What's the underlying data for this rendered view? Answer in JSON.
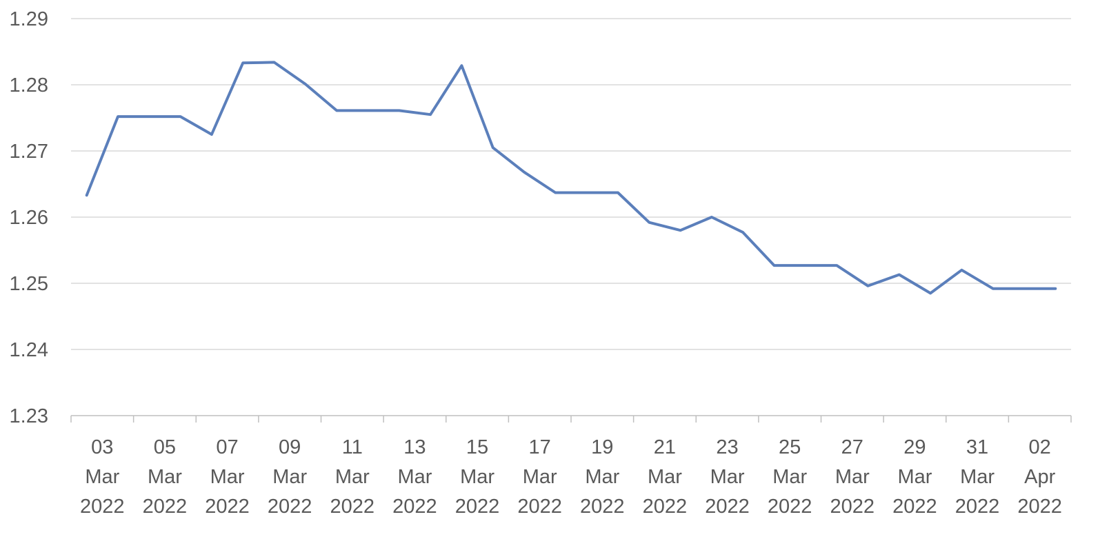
{
  "chart_data": {
    "type": "line",
    "title": "",
    "xlabel": "",
    "ylabel": "",
    "ylim": [
      1.23,
      1.29
    ],
    "y_ticks": [
      "1.23",
      "1.24",
      "1.25",
      "1.26",
      "1.27",
      "1.28",
      "1.29"
    ],
    "grid": "horizontal",
    "legend": "none",
    "x_tick_labels": [
      [
        "03",
        "Mar",
        "2022"
      ],
      [
        "05",
        "Mar",
        "2022"
      ],
      [
        "07",
        "Mar",
        "2022"
      ],
      [
        "09",
        "Mar",
        "2022"
      ],
      [
        "11",
        "Mar",
        "2022"
      ],
      [
        "13",
        "Mar",
        "2022"
      ],
      [
        "15",
        "Mar",
        "2022"
      ],
      [
        "17",
        "Mar",
        "2022"
      ],
      [
        "19",
        "Mar",
        "2022"
      ],
      [
        "21",
        "Mar",
        "2022"
      ],
      [
        "23",
        "Mar",
        "2022"
      ],
      [
        "25",
        "Mar",
        "2022"
      ],
      [
        "27",
        "Mar",
        "2022"
      ],
      [
        "29",
        "Mar",
        "2022"
      ],
      [
        "31",
        "Mar",
        "2022"
      ],
      [
        "02",
        "Apr",
        "2022"
      ]
    ],
    "x": [
      "2022-03-03",
      "2022-03-04",
      "2022-03-05",
      "2022-03-06",
      "2022-03-07",
      "2022-03-08",
      "2022-03-09",
      "2022-03-10",
      "2022-03-11",
      "2022-03-12",
      "2022-03-13",
      "2022-03-14",
      "2022-03-15",
      "2022-03-16",
      "2022-03-17",
      "2022-03-18",
      "2022-03-19",
      "2022-03-20",
      "2022-03-21",
      "2022-03-22",
      "2022-03-23",
      "2022-03-24",
      "2022-03-25",
      "2022-03-26",
      "2022-03-27",
      "2022-03-28",
      "2022-03-29",
      "2022-03-30",
      "2022-03-31",
      "2022-04-01",
      "2022-04-02",
      "2022-04-03"
    ],
    "series": [
      {
        "color": "#5b7fbb",
        "values": [
          1.2633,
          1.2752,
          1.2752,
          1.2752,
          1.2725,
          1.2833,
          1.2834,
          1.2801,
          1.2761,
          1.2761,
          1.2761,
          1.2755,
          1.2829,
          1.2705,
          1.2668,
          1.2637,
          1.2637,
          1.2637,
          1.2592,
          1.258,
          1.26,
          1.2577,
          1.2527,
          1.2527,
          1.2527,
          1.2496,
          1.2513,
          1.2485,
          1.252,
          1.2492,
          1.2492,
          1.2492
        ]
      }
    ]
  }
}
